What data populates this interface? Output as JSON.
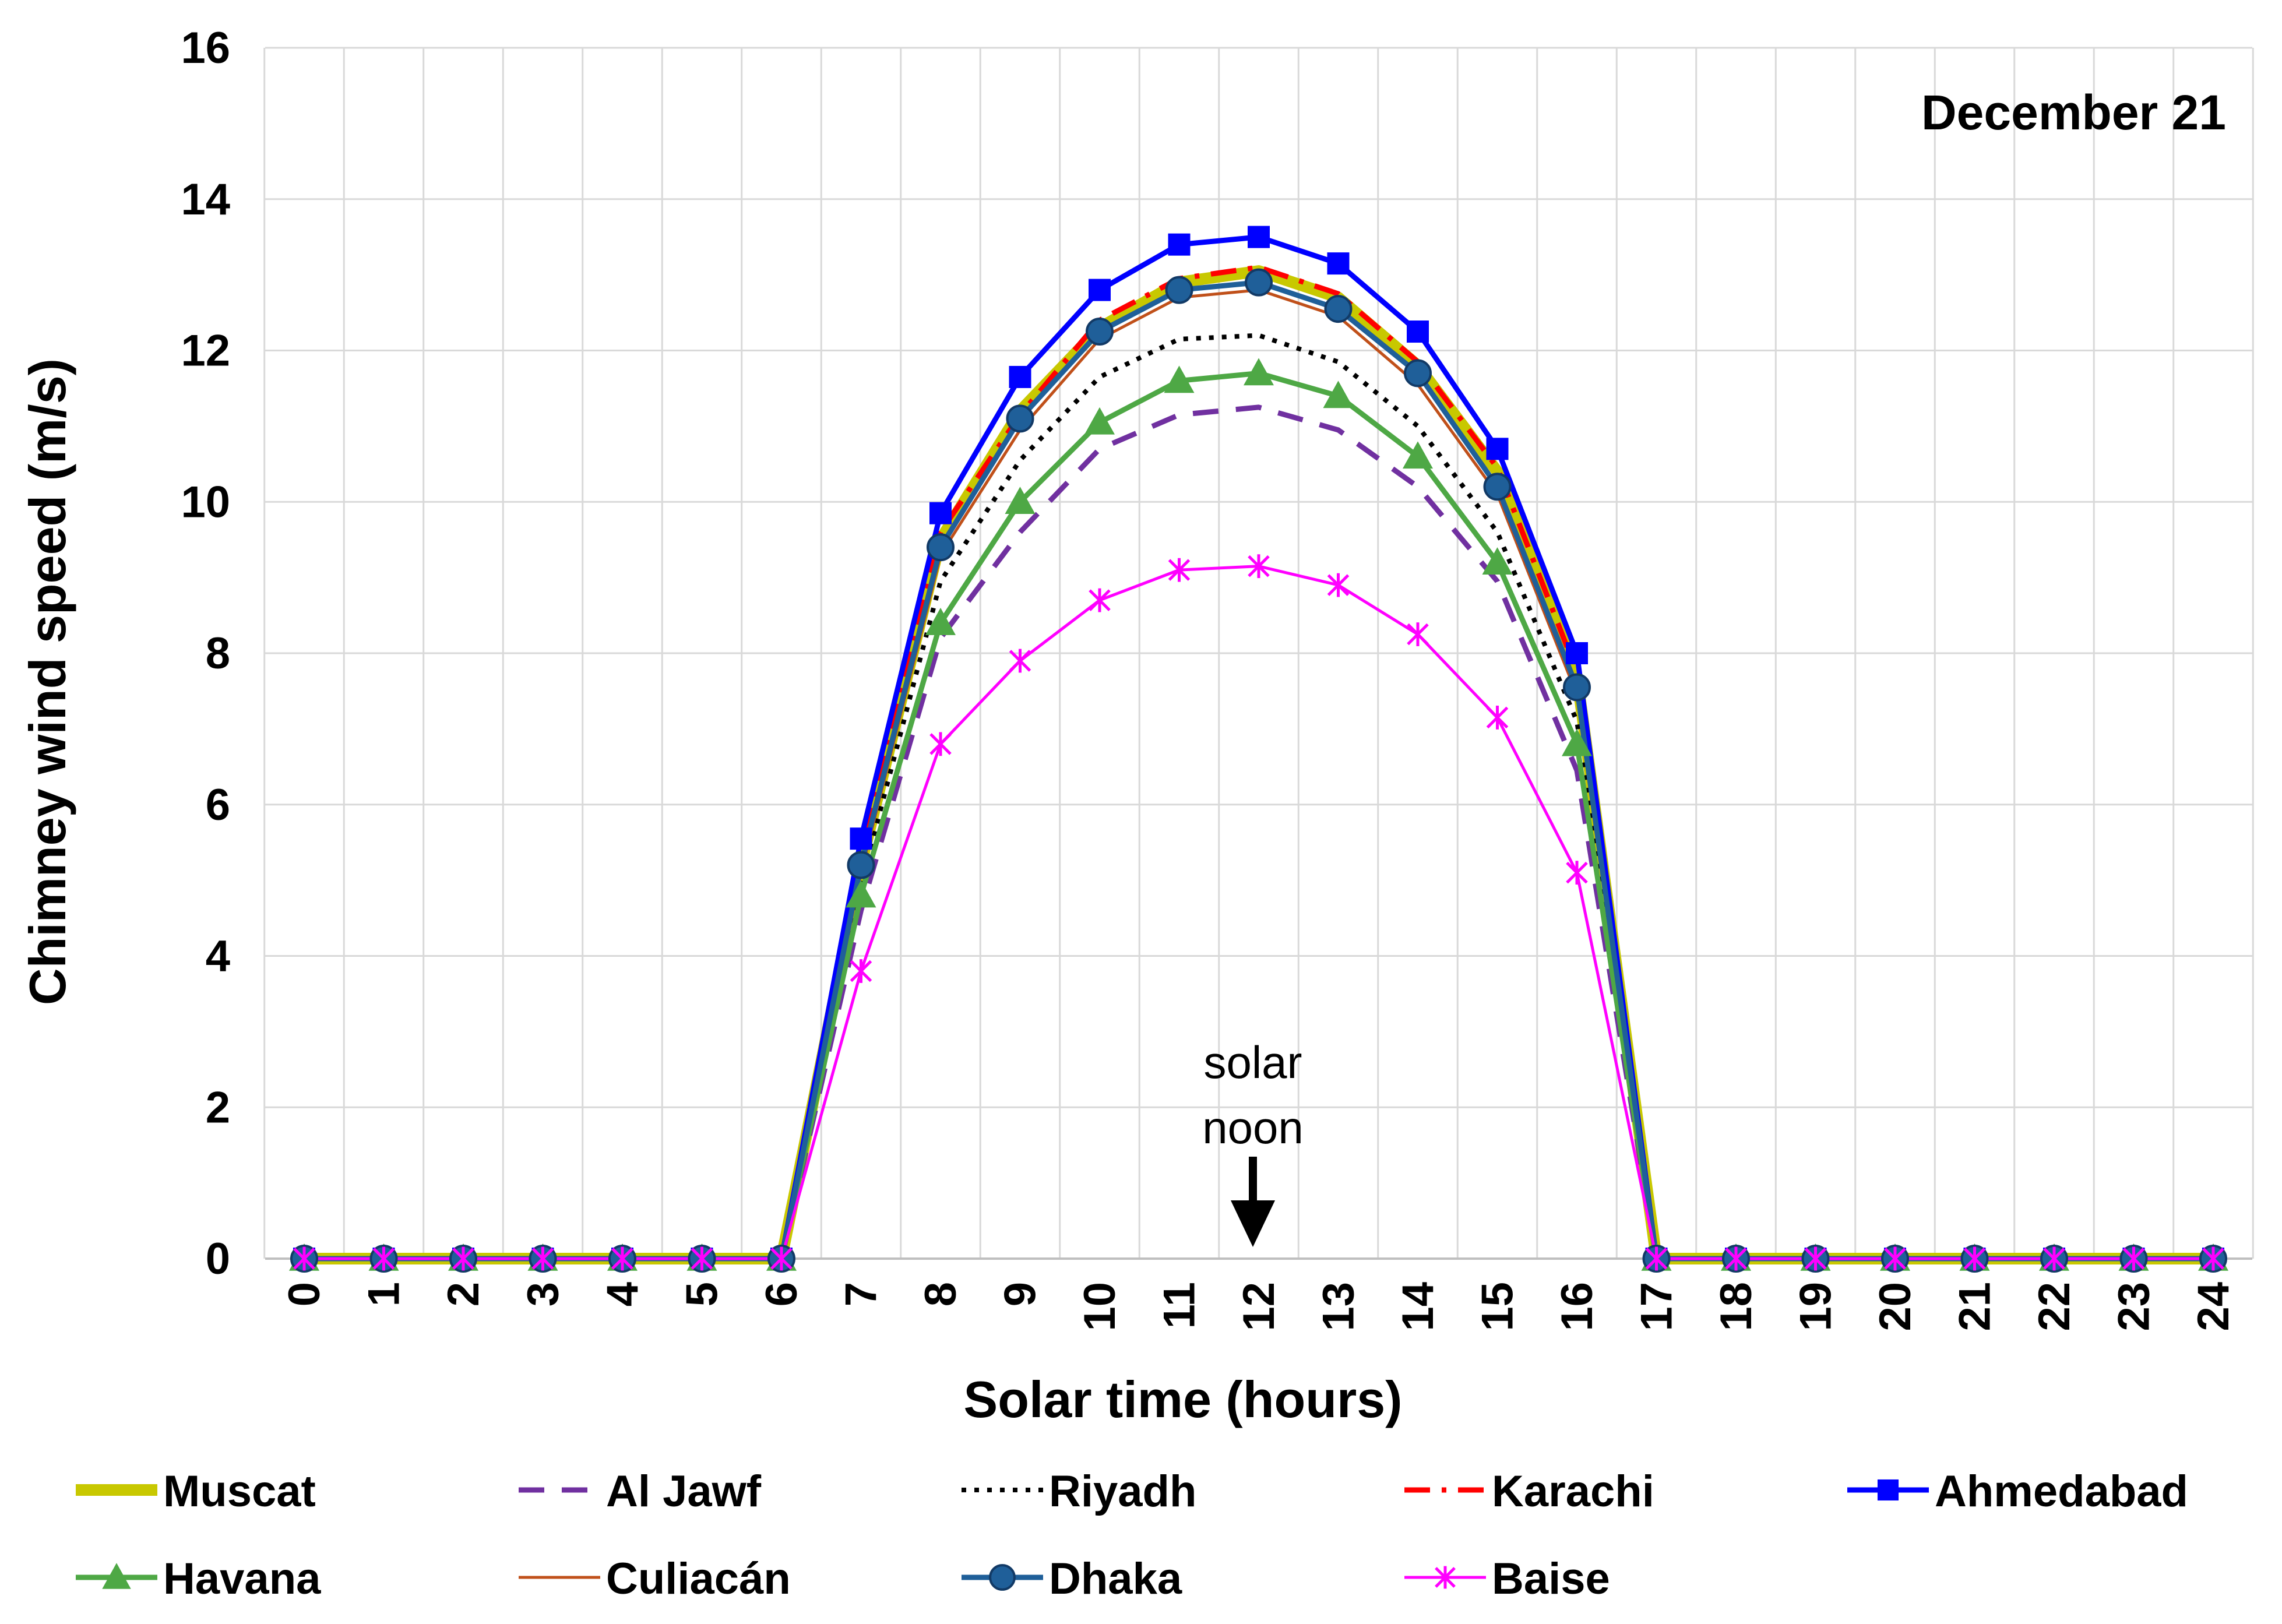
{
  "chart_data": {
    "type": "line",
    "title": "December 21",
    "xlabel": "Solar time (hours)",
    "ylabel": "Chimney wind speed (m/s)",
    "x": [
      0,
      1,
      2,
      3,
      4,
      5,
      6,
      7,
      8,
      9,
      10,
      11,
      12,
      13,
      14,
      15,
      16,
      17,
      18,
      19,
      20,
      21,
      22,
      23,
      24
    ],
    "xlim": [
      0,
      24
    ],
    "ylim": [
      0,
      16
    ],
    "yticks": [
      0,
      2,
      4,
      6,
      8,
      10,
      12,
      14,
      16
    ],
    "grid": true,
    "legend_position": "bottom",
    "annotation": {
      "text_line1": "solar",
      "text_line2": "noon",
      "x": 12,
      "arrow": "down"
    },
    "series": [
      {
        "name": "Muscat",
        "color": "#c8c800",
        "style": "solid-thick",
        "marker": "none",
        "values": [
          0,
          0,
          0,
          0,
          0,
          0,
          0,
          5.2,
          9.5,
          11.2,
          12.3,
          12.9,
          13.05,
          12.7,
          11.8,
          10.4,
          7.7,
          0,
          0,
          0,
          0,
          0,
          0,
          0,
          0
        ]
      },
      {
        "name": "Al Jawf",
        "color": "#7030a0",
        "style": "dashed",
        "marker": "none",
        "values": [
          0,
          0,
          0,
          0,
          0,
          0,
          0,
          4.6,
          8.2,
          9.6,
          10.7,
          11.15,
          11.25,
          10.95,
          10.2,
          8.95,
          6.45,
          0,
          0,
          0,
          0,
          0,
          0,
          0,
          0
        ]
      },
      {
        "name": "Riyadh",
        "color": "#000000",
        "style": "dotted",
        "marker": "none",
        "values": [
          0,
          0,
          0,
          0,
          0,
          0,
          0,
          4.95,
          8.95,
          10.55,
          11.65,
          12.15,
          12.2,
          11.85,
          11.0,
          9.6,
          7.1,
          0,
          0,
          0,
          0,
          0,
          0,
          0,
          0
        ]
      },
      {
        "name": "Karachi",
        "color": "#ff0000",
        "style": "dashdot",
        "marker": "none",
        "values": [
          0,
          0,
          0,
          0,
          0,
          0,
          0,
          5.3,
          9.6,
          11.15,
          12.4,
          12.95,
          13.1,
          12.75,
          11.85,
          10.45,
          7.75,
          0,
          0,
          0,
          0,
          0,
          0,
          0,
          0
        ]
      },
      {
        "name": "Ahmedabad",
        "color": "#0000ff",
        "style": "solid",
        "marker": "square",
        "values": [
          0,
          0,
          0,
          0,
          0,
          0,
          0,
          5.55,
          9.85,
          11.65,
          12.8,
          13.4,
          13.5,
          13.15,
          12.25,
          10.7,
          8.0,
          0,
          0,
          0,
          0,
          0,
          0,
          0,
          0
        ]
      },
      {
        "name": "Havana",
        "color": "#4ea845",
        "style": "solid",
        "marker": "triangle",
        "values": [
          0,
          0,
          0,
          0,
          0,
          0,
          0,
          4.8,
          8.4,
          10.0,
          11.05,
          11.6,
          11.7,
          11.4,
          10.6,
          9.2,
          6.8,
          0,
          0,
          0,
          0,
          0,
          0,
          0,
          0
        ]
      },
      {
        "name": "Culiacán",
        "color": "#c0501a",
        "style": "solid-thin",
        "marker": "none",
        "values": [
          0,
          0,
          0,
          0,
          0,
          0,
          0,
          5.1,
          9.3,
          10.95,
          12.15,
          12.7,
          12.8,
          12.45,
          11.55,
          10.1,
          7.45,
          0,
          0,
          0,
          0,
          0,
          0,
          0,
          0
        ]
      },
      {
        "name": "Dhaka",
        "color": "#1f5f99",
        "style": "solid",
        "marker": "circle",
        "values": [
          0,
          0,
          0,
          0,
          0,
          0,
          0,
          5.2,
          9.4,
          11.1,
          12.25,
          12.8,
          12.9,
          12.55,
          11.7,
          10.2,
          7.55,
          0,
          0,
          0,
          0,
          0,
          0,
          0,
          0
        ]
      },
      {
        "name": "Baise",
        "color": "#ff00ff",
        "style": "solid-thin",
        "marker": "star",
        "values": [
          0,
          0,
          0,
          0,
          0,
          0,
          0,
          3.8,
          6.8,
          7.9,
          8.7,
          9.1,
          9.15,
          8.9,
          8.25,
          7.15,
          5.1,
          0,
          0,
          0,
          0,
          0,
          0,
          0,
          0
        ]
      }
    ]
  }
}
